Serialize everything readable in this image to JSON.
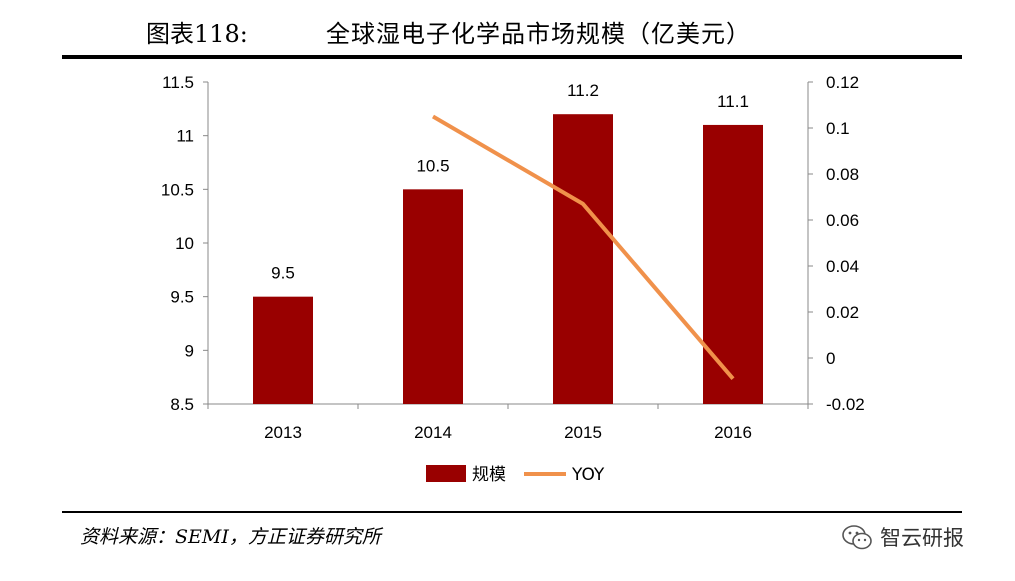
{
  "header": {
    "figure_label": "图表118:",
    "figure_title": "全球湿电子化学品市场规模（亿美元）"
  },
  "footer": {
    "source": "资料来源：SEMI，方正证券研究所",
    "watermark": "智云研报",
    "watermark_icon": "wechat-icon"
  },
  "chart_data": {
    "type": "bar",
    "categories": [
      "2013",
      "2014",
      "2015",
      "2016"
    ],
    "series": [
      {
        "name": "规模",
        "type": "bar",
        "axis": "left",
        "color": "#990000",
        "values": [
          9.5,
          10.5,
          11.2,
          11.1
        ],
        "data_labels": [
          "9.5",
          "10.5",
          "11.2",
          "11.1"
        ]
      },
      {
        "name": "YOY",
        "type": "line",
        "axis": "right",
        "color": "#F0914B",
        "values": [
          null,
          0.105,
          0.067,
          -0.009
        ]
      }
    ],
    "y_left": {
      "min": 8.5,
      "max": 11.5,
      "ticks": [
        "8.5",
        "9",
        "9.5",
        "10",
        "10.5",
        "11",
        "11.5"
      ]
    },
    "y_right": {
      "min": -0.02,
      "max": 0.12,
      "ticks": [
        "-0.02",
        "0",
        "0.02",
        "0.04",
        "0.06",
        "0.08",
        "0.1",
        "0.12"
      ]
    },
    "grid": false,
    "legend_position": "bottom"
  }
}
